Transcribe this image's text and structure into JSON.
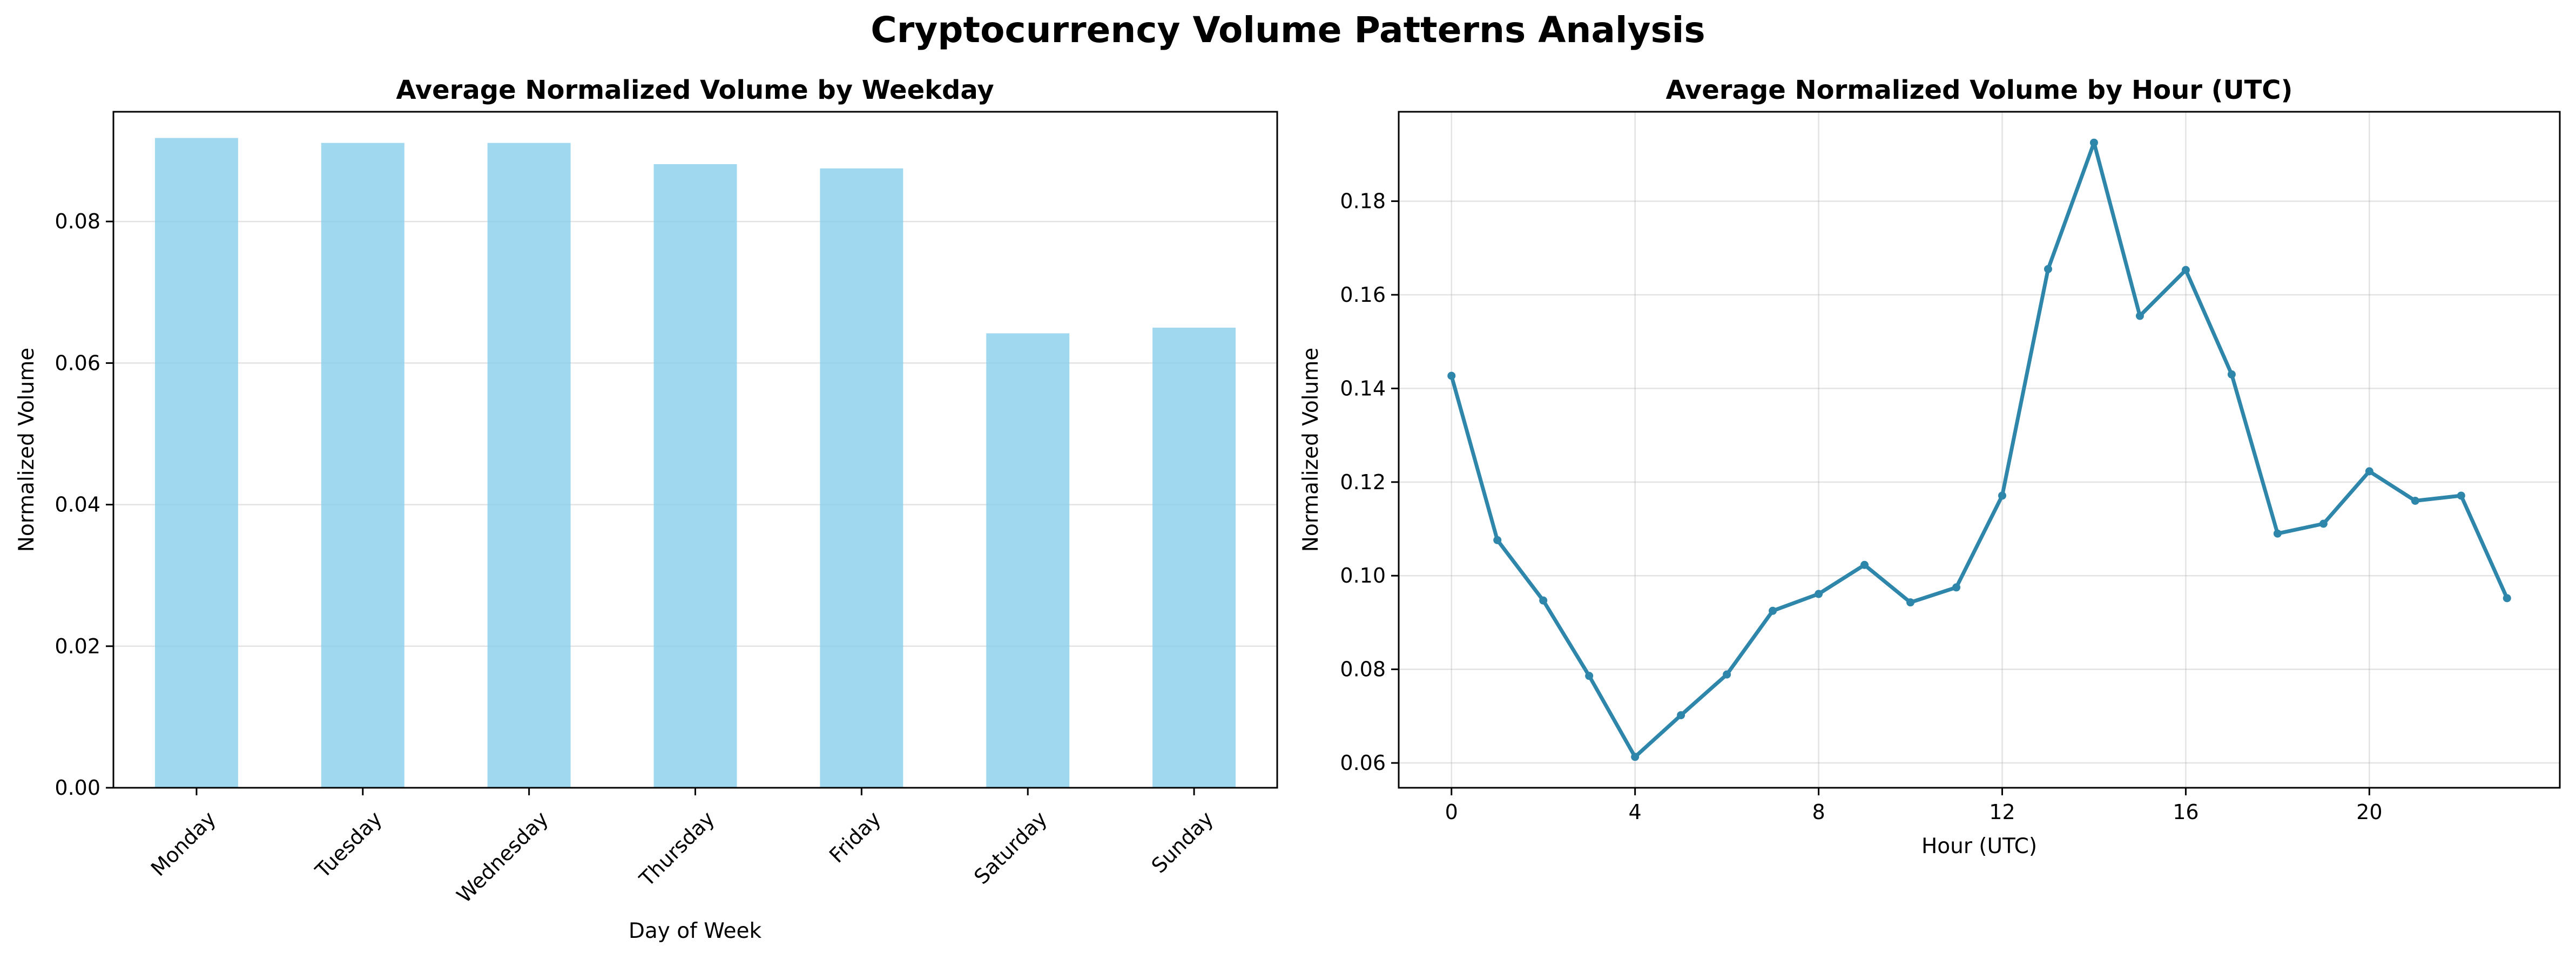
{
  "figure": {
    "title": "Cryptocurrency Volume Patterns Analysis"
  },
  "chart_data": [
    {
      "type": "bar",
      "title": "Average Normalized Volume by Weekday",
      "xlabel": "Day of Week",
      "ylabel": "Normalized Volume",
      "categories": [
        "Monday",
        "Tuesday",
        "Wednesday",
        "Thursday",
        "Friday",
        "Saturday",
        "Sunday"
      ],
      "values": [
        0.0918,
        0.0911,
        0.0911,
        0.0881,
        0.0875,
        0.0642,
        0.065
      ],
      "ylim": [
        0,
        0.0955
      ],
      "yticks": [
        0.0,
        0.02,
        0.04,
        0.06,
        0.08
      ],
      "ytick_labels": [
        "0.00",
        "0.02",
        "0.04",
        "0.06",
        "0.08"
      ],
      "grid": "y",
      "bar_color": "#87ceeb",
      "xtick_rotation": 45
    },
    {
      "type": "line",
      "title": "Average Normalized Volume by Hour (UTC)",
      "xlabel": "Hour (UTC)",
      "ylabel": "Normalized Volume",
      "x": [
        0,
        1,
        2,
        3,
        4,
        5,
        6,
        7,
        8,
        9,
        10,
        11,
        12,
        13,
        14,
        15,
        16,
        17,
        18,
        19,
        20,
        21,
        22,
        23
      ],
      "values": [
        0.1427,
        0.1076,
        0.0947,
        0.0786,
        0.0613,
        0.0702,
        0.0789,
        0.0925,
        0.0961,
        0.1023,
        0.0943,
        0.0975,
        0.1171,
        0.1655,
        0.1925,
        0.1555,
        0.1653,
        0.143,
        0.109,
        0.1111,
        0.1223,
        0.116,
        0.1171,
        0.0952
      ],
      "xlim": [
        -1.15,
        24.15
      ],
      "ylim": [
        0.0547,
        0.1991
      ],
      "xticks": [
        0,
        4,
        8,
        12,
        16,
        20
      ],
      "xtick_labels": [
        "0",
        "4",
        "8",
        "12",
        "16",
        "20"
      ],
      "yticks": [
        0.06,
        0.08,
        0.1,
        0.12,
        0.14,
        0.16,
        0.18
      ],
      "ytick_labels": [
        "0.06",
        "0.08",
        "0.10",
        "0.12",
        "0.14",
        "0.16",
        "0.18"
      ],
      "grid": "both",
      "line_color": "#2e86ab",
      "marker": "circle"
    }
  ]
}
